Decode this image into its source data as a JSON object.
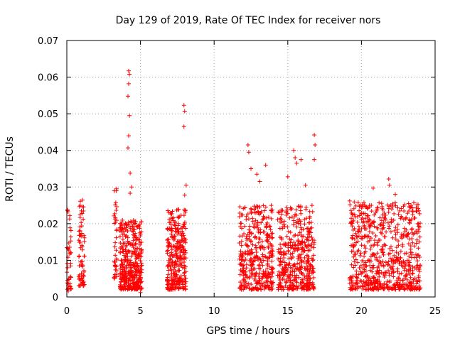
{
  "chart_data": {
    "type": "scatter",
    "title": "Day 129 of 2019, Rate Of TEC Index for receiver nors",
    "xlabel": "GPS time / hours",
    "ylabel": "ROTI / TECUs",
    "xlim": [
      0,
      25
    ],
    "ylim": [
      0,
      0.07
    ],
    "x_ticks": [
      0,
      5,
      10,
      15,
      20,
      25
    ],
    "x_tick_labels": [
      "0",
      "5",
      "10",
      "15",
      "20",
      "25"
    ],
    "y_ticks": [
      0,
      0.01,
      0.02,
      0.03,
      0.04,
      0.05,
      0.06,
      0.07
    ],
    "y_tick_labels": [
      "0",
      "0.01",
      "0.02",
      "0.03",
      "0.04",
      "0.05",
      "0.06",
      "0.07"
    ],
    "grid": true,
    "marker": "+",
    "series": [
      {
        "name": "ROTI",
        "color": "#ff0000",
        "clusters": [
          {
            "x_range": [
              0.0,
              0.3
            ],
            "y_range": [
              0.002,
              0.024
            ],
            "count": 40
          },
          {
            "x_range": [
              0.8,
              1.2
            ],
            "y_range": [
              0.003,
              0.028
            ],
            "count": 70
          },
          {
            "x_range": [
              3.2,
              3.4
            ],
            "y_range": [
              0.005,
              0.03
            ],
            "count": 40
          },
          {
            "x_range": [
              3.6,
              5.1
            ],
            "y_range": [
              0.002,
              0.021
            ],
            "count": 380
          },
          {
            "x_range": [
              6.8,
              8.1
            ],
            "y_range": [
              0.002,
              0.024
            ],
            "count": 300
          },
          {
            "x_range": [
              11.7,
              14.0
            ],
            "y_range": [
              0.002,
              0.025
            ],
            "count": 380
          },
          {
            "x_range": [
              14.3,
              16.8
            ],
            "y_range": [
              0.002,
              0.025
            ],
            "count": 420
          },
          {
            "x_range": [
              19.2,
              24.0
            ],
            "y_range": [
              0.002,
              0.026
            ],
            "count": 700
          }
        ],
        "outliers": [
          {
            "x": 4.2,
            "y": 0.0617
          },
          {
            "x": 4.25,
            "y": 0.0608
          },
          {
            "x": 4.2,
            "y": 0.0582
          },
          {
            "x": 4.15,
            "y": 0.0548
          },
          {
            "x": 4.25,
            "y": 0.0495
          },
          {
            "x": 4.2,
            "y": 0.044
          },
          {
            "x": 4.15,
            "y": 0.0407
          },
          {
            "x": 4.3,
            "y": 0.0338
          },
          {
            "x": 4.4,
            "y": 0.03
          },
          {
            "x": 4.3,
            "y": 0.0283
          },
          {
            "x": 7.95,
            "y": 0.0523
          },
          {
            "x": 8.0,
            "y": 0.0507
          },
          {
            "x": 7.95,
            "y": 0.0465
          },
          {
            "x": 8.1,
            "y": 0.0305
          },
          {
            "x": 8.0,
            "y": 0.0278
          },
          {
            "x": 12.3,
            "y": 0.0415
          },
          {
            "x": 12.35,
            "y": 0.0395
          },
          {
            "x": 12.5,
            "y": 0.035
          },
          {
            "x": 12.9,
            "y": 0.0335
          },
          {
            "x": 13.5,
            "y": 0.036
          },
          {
            "x": 13.1,
            "y": 0.0315
          },
          {
            "x": 15.4,
            "y": 0.04
          },
          {
            "x": 15.5,
            "y": 0.038
          },
          {
            "x": 15.9,
            "y": 0.0375
          },
          {
            "x": 15.6,
            "y": 0.0365
          },
          {
            "x": 16.8,
            "y": 0.0442
          },
          {
            "x": 16.85,
            "y": 0.0415
          },
          {
            "x": 16.8,
            "y": 0.0375
          },
          {
            "x": 15.0,
            "y": 0.0328
          },
          {
            "x": 16.2,
            "y": 0.0305
          },
          {
            "x": 19.2,
            "y": 0.0262
          },
          {
            "x": 20.8,
            "y": 0.0297
          },
          {
            "x": 21.85,
            "y": 0.0322
          },
          {
            "x": 21.9,
            "y": 0.0305
          },
          {
            "x": 0.05,
            "y": 0.0236
          },
          {
            "x": 0.1,
            "y": 0.0016
          },
          {
            "x": 5.0,
            "y": 0.0012
          },
          {
            "x": 23.2,
            "y": 0.0255
          },
          {
            "x": 22.3,
            "y": 0.028
          }
        ]
      }
    ]
  }
}
